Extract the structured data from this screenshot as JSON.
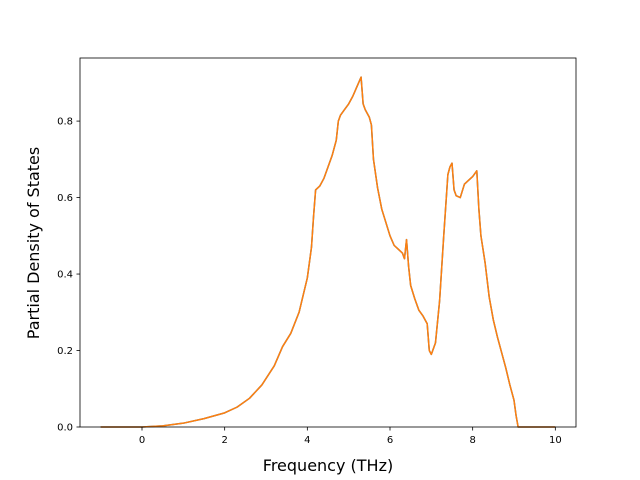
{
  "chart_data": {
    "type": "line",
    "title": "",
    "xlabel": "Frequency (THz)",
    "ylabel": "Partial Density of States",
    "xlim": [
      -1.5,
      10.5
    ],
    "ylim": [
      0.0,
      0.965
    ],
    "x_ticks": [
      0,
      2,
      4,
      6,
      8,
      10
    ],
    "x_tick_labels": [
      "0",
      "2",
      "4",
      "6",
      "8",
      "10"
    ],
    "y_ticks": [
      0.0,
      0.2,
      0.4,
      0.6,
      0.8
    ],
    "y_tick_labels": [
      "0.0",
      "0.2",
      "0.4",
      "0.6",
      "0.8"
    ],
    "grid": false,
    "legend": "none",
    "colors": {
      "series_0": "#1f77b4",
      "series_1": "#ff7f0e"
    },
    "series": [
      {
        "x": [
          -1.0,
          -0.5,
          0.0,
          0.5,
          1.0,
          1.5,
          2.0,
          2.3,
          2.6,
          2.9,
          3.2,
          3.4,
          3.6,
          3.8,
          4.0,
          4.1,
          4.15,
          4.2,
          4.3,
          4.4,
          4.5,
          4.6,
          4.7,
          4.75,
          4.8,
          4.9,
          5.0,
          5.1,
          5.2,
          5.3,
          5.35,
          5.4,
          5.5,
          5.55,
          5.6,
          5.7,
          5.8,
          5.9,
          6.0,
          6.1,
          6.2,
          6.3,
          6.35,
          6.4,
          6.45,
          6.5,
          6.6,
          6.7,
          6.8,
          6.9,
          6.95,
          7.0,
          7.1,
          7.2,
          7.3,
          7.4,
          7.45,
          7.5,
          7.55,
          7.6,
          7.7,
          7.8,
          7.9,
          8.0,
          8.1,
          8.15,
          8.2,
          8.3,
          8.4,
          8.5,
          8.6,
          8.7,
          8.8,
          8.9,
          9.0,
          9.05,
          9.1,
          9.2,
          9.5,
          10.0
        ],
        "y": [
          0.0,
          0.0,
          0.0,
          0.003,
          0.01,
          0.022,
          0.037,
          0.052,
          0.075,
          0.11,
          0.16,
          0.21,
          0.245,
          0.3,
          0.39,
          0.47,
          0.55,
          0.62,
          0.63,
          0.65,
          0.68,
          0.71,
          0.75,
          0.8,
          0.815,
          0.83,
          0.845,
          0.865,
          0.89,
          0.915,
          0.845,
          0.83,
          0.81,
          0.79,
          0.7,
          0.625,
          0.57,
          0.535,
          0.5,
          0.475,
          0.465,
          0.455,
          0.44,
          0.49,
          0.42,
          0.37,
          0.335,
          0.305,
          0.29,
          0.27,
          0.2,
          0.19,
          0.22,
          0.33,
          0.5,
          0.66,
          0.68,
          0.69,
          0.62,
          0.605,
          0.6,
          0.635,
          0.645,
          0.655,
          0.67,
          0.57,
          0.5,
          0.43,
          0.34,
          0.28,
          0.235,
          0.195,
          0.155,
          0.11,
          0.07,
          0.03,
          0.0,
          0.0,
          0.0,
          0.0
        ]
      },
      {
        "x": [
          -1.0,
          -0.5,
          0.0,
          0.5,
          1.0,
          1.5,
          2.0,
          2.3,
          2.6,
          2.9,
          3.2,
          3.4,
          3.6,
          3.8,
          4.0,
          4.1,
          4.15,
          4.2,
          4.3,
          4.4,
          4.5,
          4.6,
          4.7,
          4.75,
          4.8,
          4.9,
          5.0,
          5.1,
          5.2,
          5.3,
          5.35,
          5.4,
          5.5,
          5.55,
          5.6,
          5.7,
          5.8,
          5.9,
          6.0,
          6.1,
          6.2,
          6.3,
          6.35,
          6.4,
          6.45,
          6.5,
          6.6,
          6.7,
          6.8,
          6.9,
          6.95,
          7.0,
          7.1,
          7.2,
          7.3,
          7.4,
          7.45,
          7.5,
          7.55,
          7.6,
          7.7,
          7.8,
          7.9,
          8.0,
          8.1,
          8.15,
          8.2,
          8.3,
          8.4,
          8.5,
          8.6,
          8.7,
          8.8,
          8.9,
          9.0,
          9.05,
          9.1,
          9.2,
          9.5,
          10.0
        ],
        "y": [
          0.0,
          0.0,
          0.0,
          0.003,
          0.01,
          0.022,
          0.037,
          0.052,
          0.075,
          0.11,
          0.16,
          0.21,
          0.245,
          0.3,
          0.39,
          0.47,
          0.55,
          0.62,
          0.63,
          0.65,
          0.68,
          0.71,
          0.75,
          0.8,
          0.815,
          0.83,
          0.845,
          0.865,
          0.89,
          0.915,
          0.845,
          0.83,
          0.81,
          0.79,
          0.7,
          0.625,
          0.57,
          0.535,
          0.5,
          0.475,
          0.465,
          0.455,
          0.44,
          0.49,
          0.42,
          0.37,
          0.335,
          0.305,
          0.29,
          0.27,
          0.2,
          0.19,
          0.22,
          0.33,
          0.5,
          0.66,
          0.68,
          0.69,
          0.62,
          0.605,
          0.6,
          0.635,
          0.645,
          0.655,
          0.67,
          0.57,
          0.5,
          0.43,
          0.34,
          0.28,
          0.235,
          0.195,
          0.155,
          0.11,
          0.07,
          0.03,
          0.0,
          0.0,
          0.0,
          0.0
        ]
      }
    ]
  }
}
